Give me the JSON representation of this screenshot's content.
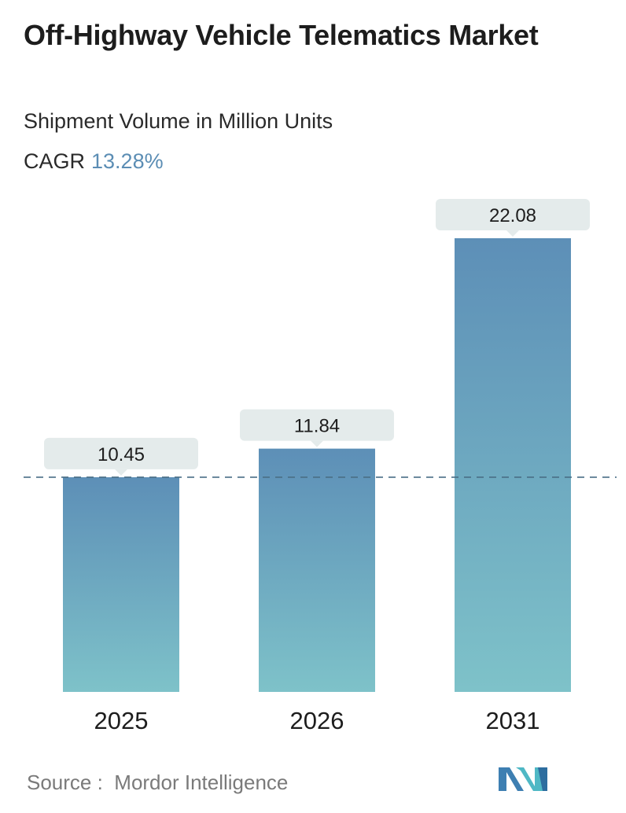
{
  "title": "Off-Highway Vehicle Telematics Market",
  "subtitle": "Shipment Volume in Million Units",
  "cagr": {
    "label": "CAGR",
    "value": "13.28%"
  },
  "source": {
    "label": "Source :",
    "name": "Mordor Intelligence"
  },
  "logo_icon": "mordor-intelligence-logo-icon",
  "colors": {
    "bar_top": "#5d8fb7",
    "bar_bottom": "#7ec2c9",
    "label_box": "#e4ebeb",
    "reference_line": "#4a6f86",
    "cagr_value": "#5b8db4"
  },
  "chart_data": {
    "type": "bar",
    "categories": [
      "2025",
      "2026",
      "2031"
    ],
    "values": [
      10.45,
      11.84,
      22.08
    ],
    "data_labels": [
      "10.45",
      "11.84",
      "22.08"
    ],
    "ylim": [
      0,
      22.08
    ],
    "reference_line": {
      "value": 10.45,
      "style": "dashed"
    },
    "grid": false,
    "legend": "none",
    "xlabel": "",
    "ylabel": ""
  }
}
